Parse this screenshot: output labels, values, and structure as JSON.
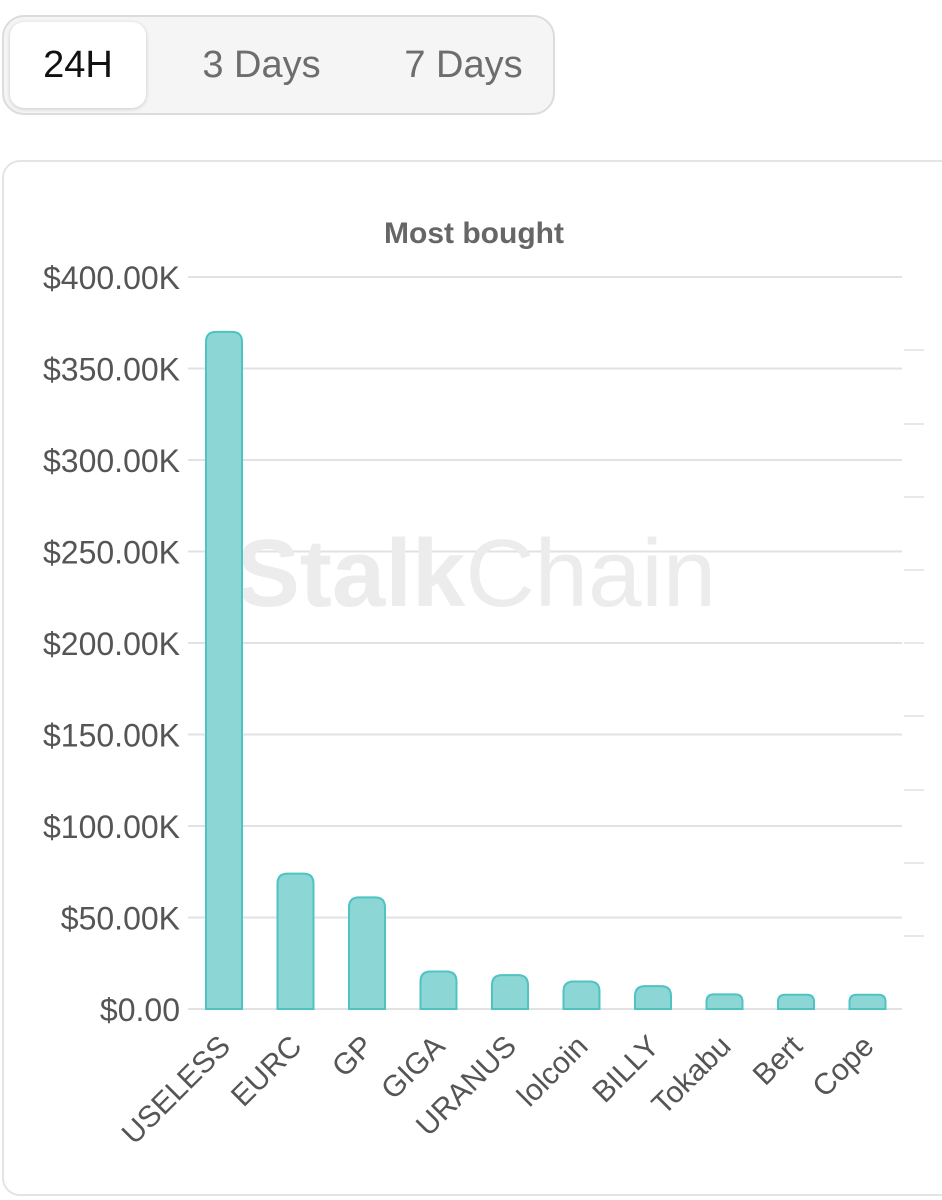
{
  "tabs": [
    {
      "label": "24H",
      "active": true
    },
    {
      "label": "3 Days",
      "active": false
    },
    {
      "label": "7 Days",
      "active": false
    }
  ],
  "watermark": {
    "bold": "Stalk",
    "light": "Chain"
  },
  "colors": {
    "bar_fill": "#8cd6d6",
    "bar_stroke": "#4fc3c3",
    "grid": "#e2e2e2",
    "axis_text": "#555555",
    "title": "#666666",
    "watermark": "#ececec"
  },
  "chart_data": {
    "type": "bar",
    "title": "Most bought",
    "categories": [
      "USELESS",
      "EURC",
      "GP",
      "GIGA",
      "URANUS",
      "lolcoin",
      "BILLY",
      "Tokabu",
      "Bert",
      "Cope"
    ],
    "values": [
      370000,
      74000,
      61000,
      20500,
      18500,
      15000,
      12500,
      8000,
      7800,
      7800
    ],
    "ylim": [
      0,
      400000
    ],
    "yticks": [
      {
        "value": 0,
        "label": "$0.00"
      },
      {
        "value": 50000,
        "label": "$50.00K"
      },
      {
        "value": 100000,
        "label": "$100.00K"
      },
      {
        "value": 150000,
        "label": "$150.00K"
      },
      {
        "value": 200000,
        "label": "$200.00K"
      },
      {
        "value": 250000,
        "label": "$250.00K"
      },
      {
        "value": 300000,
        "label": "$300.00K"
      },
      {
        "value": 350000,
        "label": "$350.00K"
      },
      {
        "value": 400000,
        "label": "$400.00K"
      }
    ],
    "grid": true,
    "legend": "none"
  }
}
